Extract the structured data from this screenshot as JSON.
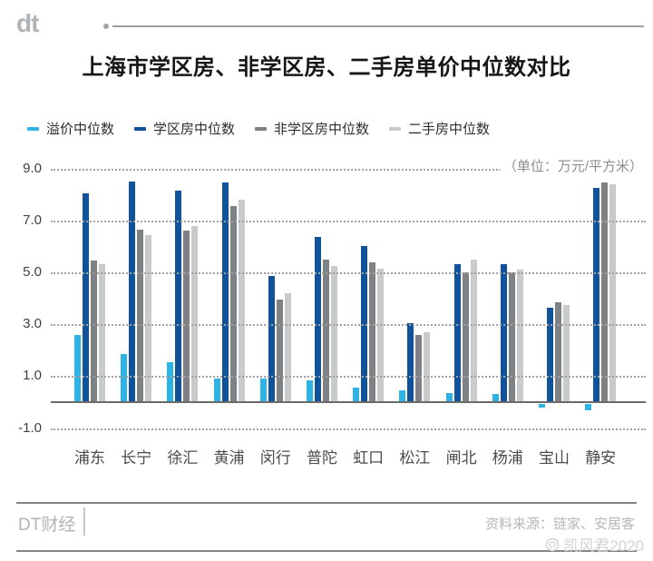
{
  "header": {
    "logo": "dt",
    "title": "上海市学区房、非学区房、二手房单价中位数对比"
  },
  "unit_note": "（单位：万元/平方米）",
  "chart_data": {
    "type": "bar",
    "title": "上海市学区房、非学区房、二手房单价中位数对比",
    "unit": "万元/平方米",
    "categories": [
      "浦东",
      "长宁",
      "徐汇",
      "黄浦",
      "闵行",
      "普陀",
      "虹口",
      "松江",
      "闸北",
      "杨浦",
      "宝山",
      "静安"
    ],
    "series": [
      {
        "key": "premium",
        "name": "溢价中位数",
        "color": "#2fb3e4",
        "values": [
          2.6,
          1.85,
          1.55,
          0.9,
          0.9,
          0.85,
          0.55,
          0.45,
          0.35,
          0.3,
          -0.15,
          -0.25
        ]
      },
      {
        "key": "school",
        "name": "学区房中位数",
        "color": "#10539b",
        "values": [
          8.05,
          8.5,
          8.15,
          8.45,
          4.85,
          6.35,
          6.0,
          3.05,
          5.3,
          5.3,
          3.65,
          8.25
        ]
      },
      {
        "key": "non_school",
        "name": "非学区房中位数",
        "color": "#7e8285",
        "values": [
          5.45,
          6.65,
          6.6,
          7.55,
          3.95,
          5.5,
          5.4,
          2.6,
          5.0,
          5.0,
          3.85,
          8.45
        ]
      },
      {
        "key": "secondhand",
        "name": "二手房中位数",
        "color": "#c8cacc",
        "values": [
          5.3,
          6.45,
          6.8,
          7.8,
          4.2,
          5.25,
          5.15,
          2.7,
          5.5,
          5.1,
          3.75,
          8.4
        ]
      }
    ],
    "yticks": [
      9.0,
      7.0,
      5.0,
      3.0,
      1.0,
      -1.0
    ],
    "ylim": [
      -1.0,
      9.4
    ],
    "xlabel": "",
    "ylabel": "万元/平方米",
    "grid": "horizontal-dotted",
    "legend_position": "top-left"
  },
  "footer": {
    "brand": "DT财经",
    "source": "资料来源：链家、安居客",
    "watermark": "凯风君2020"
  }
}
